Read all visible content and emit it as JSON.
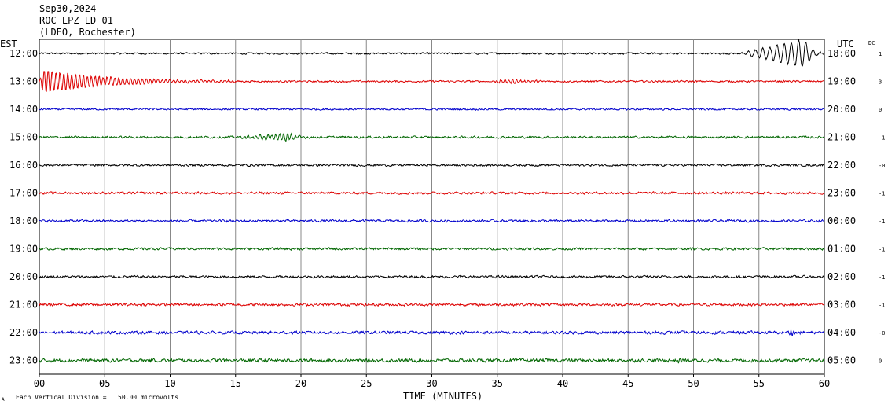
{
  "header": {
    "date": "Sep30,2024",
    "station": "ROC LPZ LD 01",
    "network": "(LDEO, Rochester)"
  },
  "left_axis_label": "EST",
  "right_axis_label": "UTC",
  "dc_label": "DC",
  "footer": {
    "scale_note": "Each Vertical Division =   50.00 microvolts",
    "xlabel": "TIME (MINUTES)",
    "tiny_mark": "A"
  },
  "colors": {
    "black": "#000000",
    "red": "#dd0000",
    "blue": "#0000cc",
    "green": "#006600",
    "grid": "#888888"
  },
  "chart_data": {
    "type": "line",
    "title": "",
    "xlabel": "TIME (MINUTES)",
    "ylabel": "",
    "xlim": [
      0,
      60
    ],
    "x_ticks": [
      "00",
      "05",
      "10",
      "15",
      "20",
      "25",
      "30",
      "35",
      "40",
      "45",
      "50",
      "55",
      "60"
    ],
    "x_tick_values": [
      0,
      5,
      10,
      15,
      20,
      25,
      30,
      35,
      40,
      45,
      50,
      55,
      60
    ],
    "grid": true,
    "traces": [
      {
        "est": "12:00",
        "utc": "18:00",
        "dc": "1",
        "color": "black",
        "events": [
          {
            "start": 53.5,
            "peak": 58.5,
            "end": 60,
            "amp": 18,
            "period_min": 0.55
          }
        ],
        "noise": 0.9
      },
      {
        "est": "13:00",
        "utc": "19:00",
        "dc": "3",
        "color": "red",
        "events": [
          {
            "start": 0,
            "peak": 0.3,
            "end": 15,
            "amp": 15,
            "period_min": 0.3
          },
          {
            "start": 34,
            "peak": 36,
            "end": 40,
            "amp": 2.5,
            "period_min": 0.3
          }
        ],
        "noise": 0.9
      },
      {
        "est": "14:00",
        "utc": "20:00",
        "dc": "0",
        "color": "blue",
        "events": [],
        "noise": 0.9
      },
      {
        "est": "15:00",
        "utc": "21:00",
        "dc": "-1",
        "color": "green",
        "events": [
          {
            "start": 15,
            "peak": 19,
            "end": 21,
            "amp": 5,
            "period_min": 0.3
          }
        ],
        "noise": 1.1
      },
      {
        "est": "16:00",
        "utc": "22:00",
        "dc": "-0",
        "color": "black",
        "events": [],
        "noise": 1.1
      },
      {
        "est": "17:00",
        "utc": "23:00",
        "dc": "-1",
        "color": "red",
        "events": [],
        "noise": 1.2
      },
      {
        "est": "18:00",
        "utc": "00:00",
        "dc": "-1",
        "color": "blue",
        "events": [],
        "noise": 1.2
      },
      {
        "est": "19:00",
        "utc": "01:00",
        "dc": "-1",
        "color": "green",
        "events": [],
        "noise": 1.2
      },
      {
        "est": "20:00",
        "utc": "02:00",
        "dc": "-1",
        "color": "black",
        "events": [],
        "noise": 1.2
      },
      {
        "est": "21:00",
        "utc": "03:00",
        "dc": "-1",
        "color": "red",
        "events": [],
        "noise": 1.3
      },
      {
        "est": "22:00",
        "utc": "04:00",
        "dc": "-0",
        "color": "blue",
        "events": [
          {
            "start": 57,
            "peak": 57.5,
            "end": 58.3,
            "amp": 3,
            "period_min": 0.2
          }
        ],
        "noise": 1.5
      },
      {
        "est": "23:00",
        "utc": "05:00",
        "dc": "0",
        "color": "green",
        "events": [
          {
            "start": 48.5,
            "peak": 49,
            "end": 49.6,
            "amp": 3,
            "period_min": 0.2
          }
        ],
        "noise": 1.7
      }
    ]
  }
}
